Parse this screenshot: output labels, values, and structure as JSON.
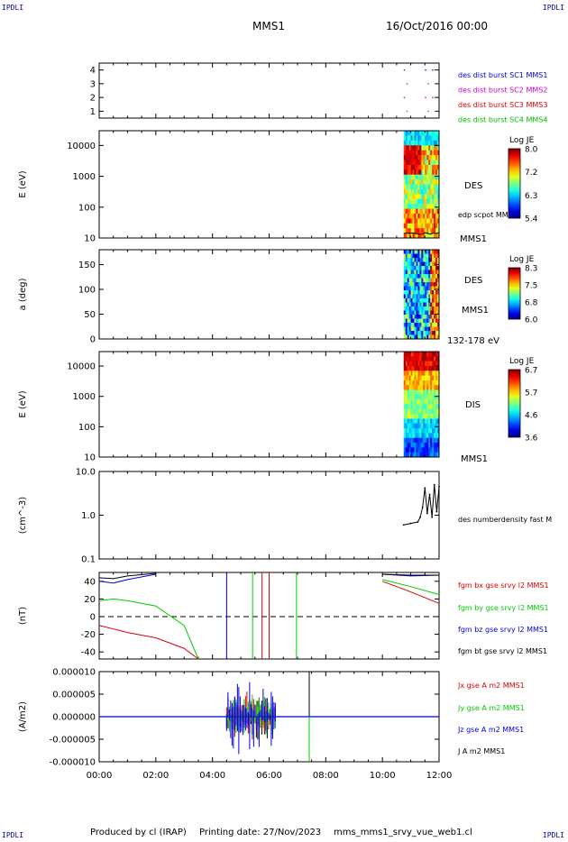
{
  "header": {
    "corner_tag": "IPDLI",
    "mission": "MMS1",
    "date": "16/Oct/2016 00:00"
  },
  "footer": {
    "produced": "Produced by cl (IRAP)",
    "printing": "Printing date: 27/Nov/2023",
    "script": "mms_mms1_srvy_vue_web1.cl"
  },
  "time_axis": {
    "start": "00:00",
    "end": "12:00",
    "ticks": [
      "00:00",
      "02:00",
      "04:00",
      "06:00",
      "08:00",
      "10:00",
      "12:00"
    ]
  },
  "colors": {
    "bx": "#dd0000",
    "by": "#00cc00",
    "bz": "#0000dd",
    "bt": "#000000",
    "legend_sc1": "#0000cc",
    "legend_sc2": "#cc00cc",
    "legend_sc3": "#dd0000",
    "legend_sc4": "#00bb00"
  },
  "chart_data": [
    {
      "type": "scatter",
      "panel": "burst",
      "ylim": [
        0.5,
        4.5
      ],
      "yticks": [
        "1",
        "2",
        "3",
        "4"
      ],
      "legend": [
        {
          "label": "des dist burst SC1 MMS1",
          "level": 4
        },
        {
          "label": "des dist burst SC2 MMS2",
          "level": 3
        },
        {
          "label": "des dist burst SC3 MMS3",
          "level": 2
        },
        {
          "label": "des dist burst SC4 MMS4",
          "level": 1
        }
      ],
      "burst_times": [
        "10:45",
        "11:30",
        "11:45"
      ]
    },
    {
      "type": "heatmap",
      "panel": "des-energy",
      "ylabel": "E (eV)",
      "yscale": "log",
      "ylim": [
        10,
        30000
      ],
      "yticks": [
        "10",
        "100",
        "1000",
        "10000"
      ],
      "data_start": "10:45",
      "instrument": "DES",
      "overlay": "edp scpot MMS1",
      "spacecraft": "MMS1",
      "colorbar": {
        "title": "Log JE",
        "ticks": [
          "8.0",
          "7.2",
          "6.3",
          "5.4"
        ],
        "range": [
          5.4,
          8.0
        ]
      }
    },
    {
      "type": "heatmap",
      "panel": "des-pitch",
      "ylabel": "a (deg)",
      "ylim": [
        0,
        180
      ],
      "yticks": [
        "0",
        "50",
        "100",
        "150"
      ],
      "data_start": "10:45",
      "instrument": "DES",
      "spacecraft": "MMS1",
      "energy_range": "132-178 eV",
      "colorbar": {
        "title": "Log JE",
        "ticks": [
          "8.3",
          "7.5",
          "6.8",
          "6.0"
        ],
        "range": [
          6.0,
          8.3
        ]
      }
    },
    {
      "type": "heatmap",
      "panel": "dis-energy",
      "ylabel": "E (eV)",
      "yscale": "log",
      "ylim": [
        10,
        30000
      ],
      "yticks": [
        "10",
        "100",
        "1000",
        "10000"
      ],
      "data_start": "10:45",
      "instrument": "DIS",
      "spacecraft": "MMS1",
      "colorbar": {
        "title": "Log JE",
        "ticks": [
          "6.7",
          "5.7",
          "4.6",
          "3.6"
        ],
        "range": [
          3.6,
          6.7
        ]
      }
    },
    {
      "type": "line",
      "panel": "density",
      "ylabel": "(cm^-3)",
      "yscale": "log",
      "ylim": [
        0.1,
        10
      ],
      "yticks": [
        "0.1",
        "1.0",
        "10.0"
      ],
      "series": [
        {
          "name": "des numberdensity fast M",
          "x": [
            "10:45",
            "11:00",
            "11:15",
            "11:20",
            "11:25",
            "11:30",
            "11:35",
            "11:40",
            "11:45",
            "11:50",
            "11:55",
            "12:00"
          ],
          "y": [
            0.6,
            0.65,
            0.7,
            0.9,
            1.5,
            4.2,
            1.1,
            3.0,
            0.9,
            5.0,
            1.2,
            4.5
          ]
        }
      ]
    },
    {
      "type": "line",
      "panel": "magnetic-field",
      "ylabel": "(nT)",
      "ylim": [
        -48,
        50
      ],
      "yticks": [
        "-40",
        "-20",
        "0",
        "20",
        "40"
      ],
      "series": [
        {
          "name": "fgm bx gse srvy l2 MMS1",
          "x": [
            "00:00",
            "00:30",
            "01:00",
            "02:00",
            "03:00",
            "03:30",
            "10:00",
            "11:00",
            "12:00"
          ],
          "y": [
            -10,
            -14,
            -18,
            -24,
            -36,
            -48,
            40,
            28,
            15
          ]
        },
        {
          "name": "fgm by gse srvy l2 MMS1",
          "x": [
            "00:00",
            "00:30",
            "01:00",
            "02:00",
            "03:00",
            "03:30",
            "10:00",
            "11:00",
            "12:00"
          ],
          "y": [
            18,
            20,
            18,
            12,
            -10,
            -48,
            42,
            34,
            25
          ]
        },
        {
          "name": "fgm bz gse srvy l2 MMS1",
          "x": [
            "00:00",
            "00:30",
            "01:00",
            "02:00",
            "10:00",
            "11:00",
            "12:00"
          ],
          "y": [
            40,
            38,
            42,
            48,
            48,
            46,
            47
          ]
        },
        {
          "name": "fgm bt gse srvy l2 MMS1",
          "x": [
            "00:00",
            "00:30",
            "01:00",
            "02:00",
            "10:00",
            "11:00",
            "12:00"
          ],
          "y": [
            44,
            43,
            46,
            49,
            48,
            47,
            47
          ]
        }
      ]
    },
    {
      "type": "line",
      "panel": "current-density",
      "ylabel": "(A/m2)",
      "ylim": [
        -1e-05,
        1e-05
      ],
      "yticks": [
        "-0.000010",
        "-0.000005",
        "0.000000",
        "0.000005",
        "0.000010"
      ],
      "series": [
        {
          "name": "Jx gse A m2 MMS1"
        },
        {
          "name": "Jy gse A m2 MMS1"
        },
        {
          "name": "Jz gse A m2 MMS1"
        },
        {
          "name": "J A m2 MMS1"
        }
      ],
      "activity_window": [
        "04:30",
        "06:15"
      ]
    }
  ]
}
